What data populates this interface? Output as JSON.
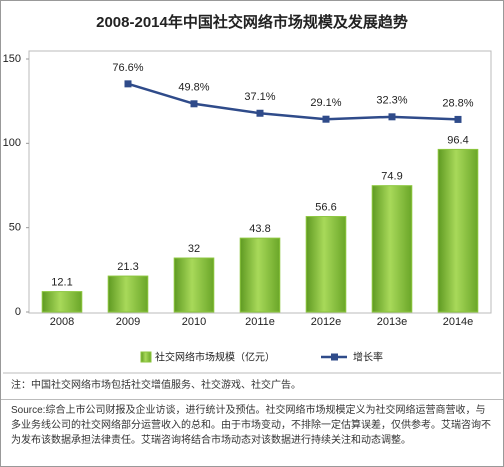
{
  "chart_data": {
    "type": "bar",
    "title": "2008-2014年中国社交网络市场规模及发展趋势",
    "categories": [
      "2008",
      "2009",
      "2010",
      "2011e",
      "2012e",
      "2013e",
      "2014e"
    ],
    "series": [
      {
        "name": "社交网络市场规模（亿元）",
        "type": "bar",
        "color": "#8cc63e",
        "values": [
          12.1,
          21.3,
          32.0,
          43.8,
          56.6,
          74.9,
          96.4
        ]
      },
      {
        "name": "增长率",
        "type": "line",
        "axis": "y2",
        "color": "#2f4b8a",
        "values": [
          null,
          76.6,
          49.8,
          37.1,
          29.1,
          32.3,
          28.8
        ],
        "value_labels": [
          null,
          "76.6%",
          "49.8%",
          "37.1%",
          "29.1%",
          "32.3%",
          "28.8%"
        ]
      }
    ],
    "ylim": [
      0,
      150
    ],
    "yticks": [
      0,
      50,
      100,
      150
    ],
    "y2lim": [
      -230,
      110
    ],
    "grid": false,
    "legend": "bottom",
    "note": "注：中国社交网络市场包括社交增值服务、社交游戏、社交广告。",
    "source": "Source:综合上市公司财报及企业访谈，进行统计及预估。社交网络市场规模定义为社交网络运营商营收，与多业务线公司的社交网络部分运营收入的总和。由于市场变动，不排除一定估算误差，仅供参考。艾瑞咨询不为发布该数据承担法律责任。艾瑞咨询将结合市场动态对该数据进行持续关注和动态调整。"
  }
}
